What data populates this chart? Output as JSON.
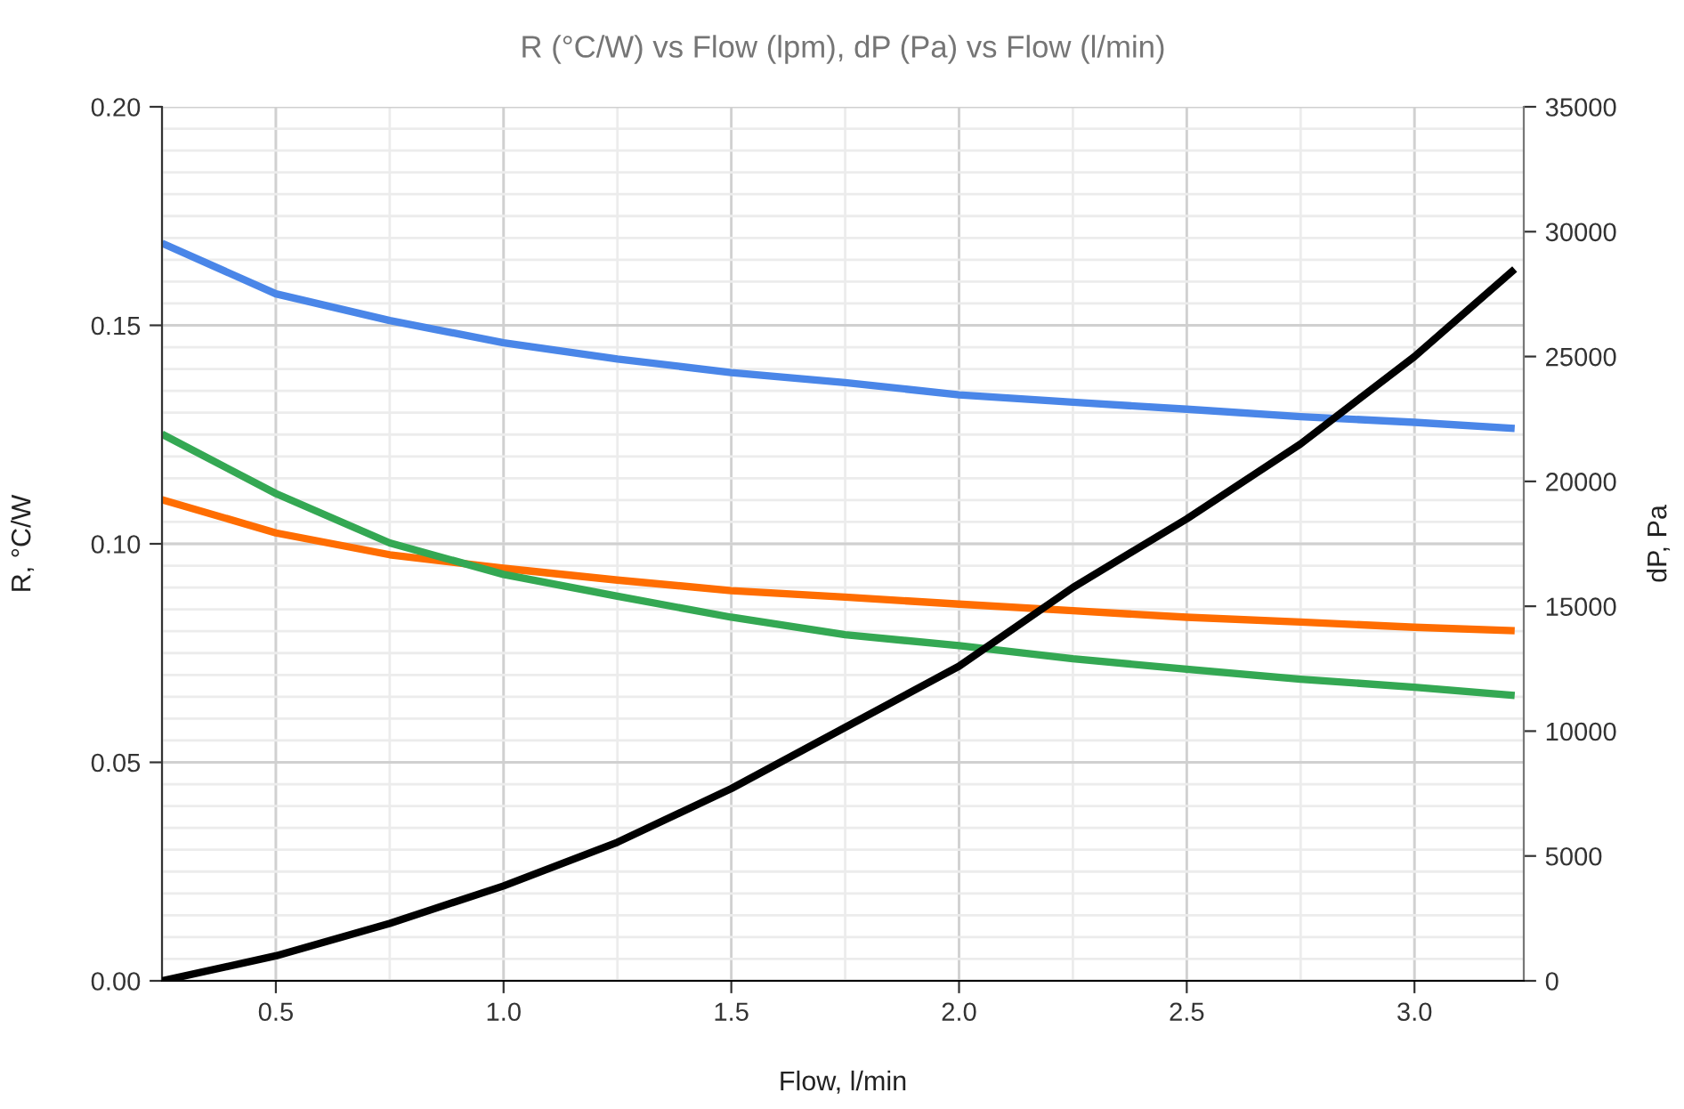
{
  "chart_data": {
    "type": "line",
    "title": "R (°C/W) vs Flow (lpm), dP (Pa) vs Flow (l/min)",
    "xlabel": "Flow, l/min",
    "ylabel": "R, °C/W",
    "y2label": "dP, Pa",
    "x": [
      0.25,
      0.5,
      0.75,
      1.0,
      1.25,
      1.5,
      1.75,
      2.0,
      2.25,
      2.5,
      2.75,
      3.0,
      3.22
    ],
    "series": [
      {
        "color": "#4a86e8",
        "values": [
          0.1688,
          0.1572,
          0.1511,
          0.146,
          0.1423,
          0.1392,
          0.1369,
          0.1341,
          0.1324,
          0.1308,
          0.1291,
          0.1278,
          0.1264
        ]
      },
      {
        "color": "#ff6d01",
        "values": [
          0.1101,
          0.1025,
          0.0975,
          0.0944,
          0.0917,
          0.0893,
          0.0878,
          0.0862,
          0.0847,
          0.0832,
          0.0821,
          0.0809,
          0.0801
        ]
      },
      {
        "color": "#34a853",
        "values": [
          0.1251,
          0.1115,
          0.1002,
          0.093,
          0.088,
          0.0832,
          0.0792,
          0.0767,
          0.0737,
          0.0713,
          0.069,
          0.0672,
          0.0653
        ]
      },
      {
        "color": "#000000",
        "axis": "y2",
        "values": [
          0,
          1000,
          2300,
          3800,
          5550,
          7700,
          10150,
          12600,
          15750,
          18500,
          21500,
          25000,
          28500
        ]
      }
    ],
    "xlim": [
      0.25,
      3.24
    ],
    "xticks": [
      {
        "value": 0.5,
        "label": "0.5"
      },
      {
        "value": 1.0,
        "label": "1.0"
      },
      {
        "value": 1.5,
        "label": "1.5"
      },
      {
        "value": 2.0,
        "label": "2.0"
      },
      {
        "value": 2.5,
        "label": "2.5"
      },
      {
        "value": 3.0,
        "label": "3.0"
      }
    ],
    "ylim": [
      0,
      0.2
    ],
    "yticks": [
      {
        "value": 0,
        "label": "0.00"
      },
      {
        "value": 0.05,
        "label": "0.05"
      },
      {
        "value": 0.1,
        "label": "0.10"
      },
      {
        "value": 0.15,
        "label": "0.15"
      },
      {
        "value": 0.2,
        "label": "0.20"
      }
    ],
    "y2lim": [
      0,
      35000
    ],
    "y2ticks": [
      0,
      5000,
      10000,
      15000,
      20000,
      25000,
      30000,
      35000
    ],
    "grid": true,
    "marker": "none",
    "line_style": "solid"
  }
}
